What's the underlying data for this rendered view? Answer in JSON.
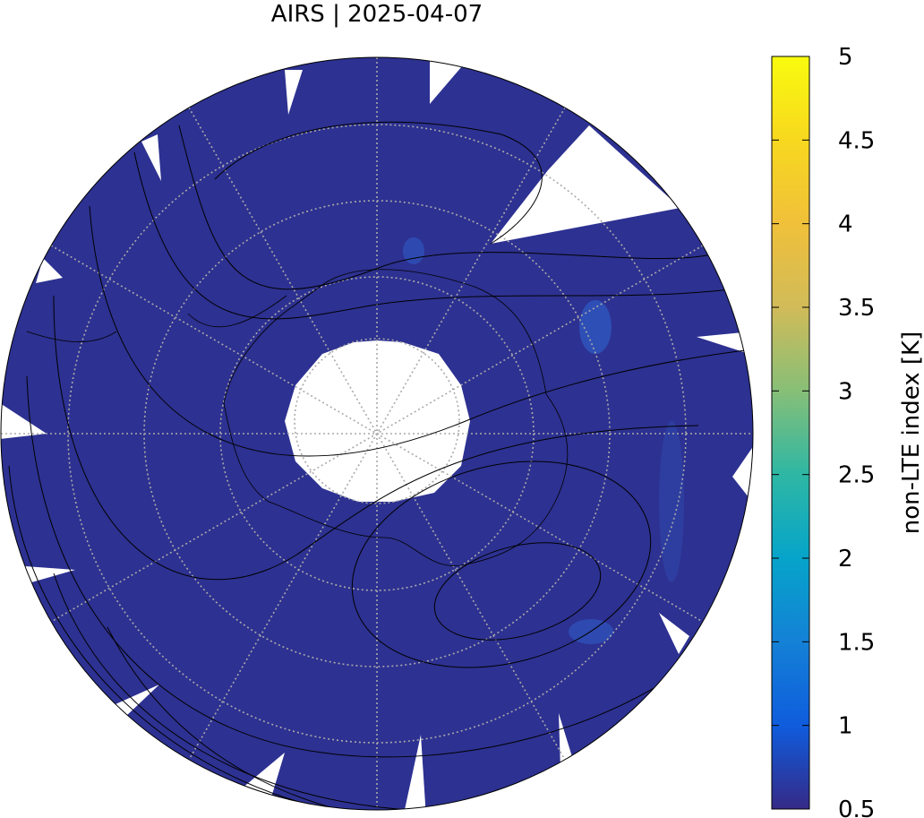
{
  "title": "AIRS | 2025-04-07",
  "colorbar": {
    "label": "non-LTE index [K]",
    "lim": [
      0.5,
      5
    ],
    "ticks": [
      0.5,
      1,
      1.5,
      2,
      2.5,
      3,
      3.5,
      4,
      4.5,
      5
    ],
    "colors": [
      "#352a87",
      "#0f5cdd",
      "#1481d6",
      "#06a4ca",
      "#2eb7a4",
      "#87bf77",
      "#d1bb59",
      "#f0c03a",
      "#f7d81f",
      "#f9fb0e"
    ]
  }
}
